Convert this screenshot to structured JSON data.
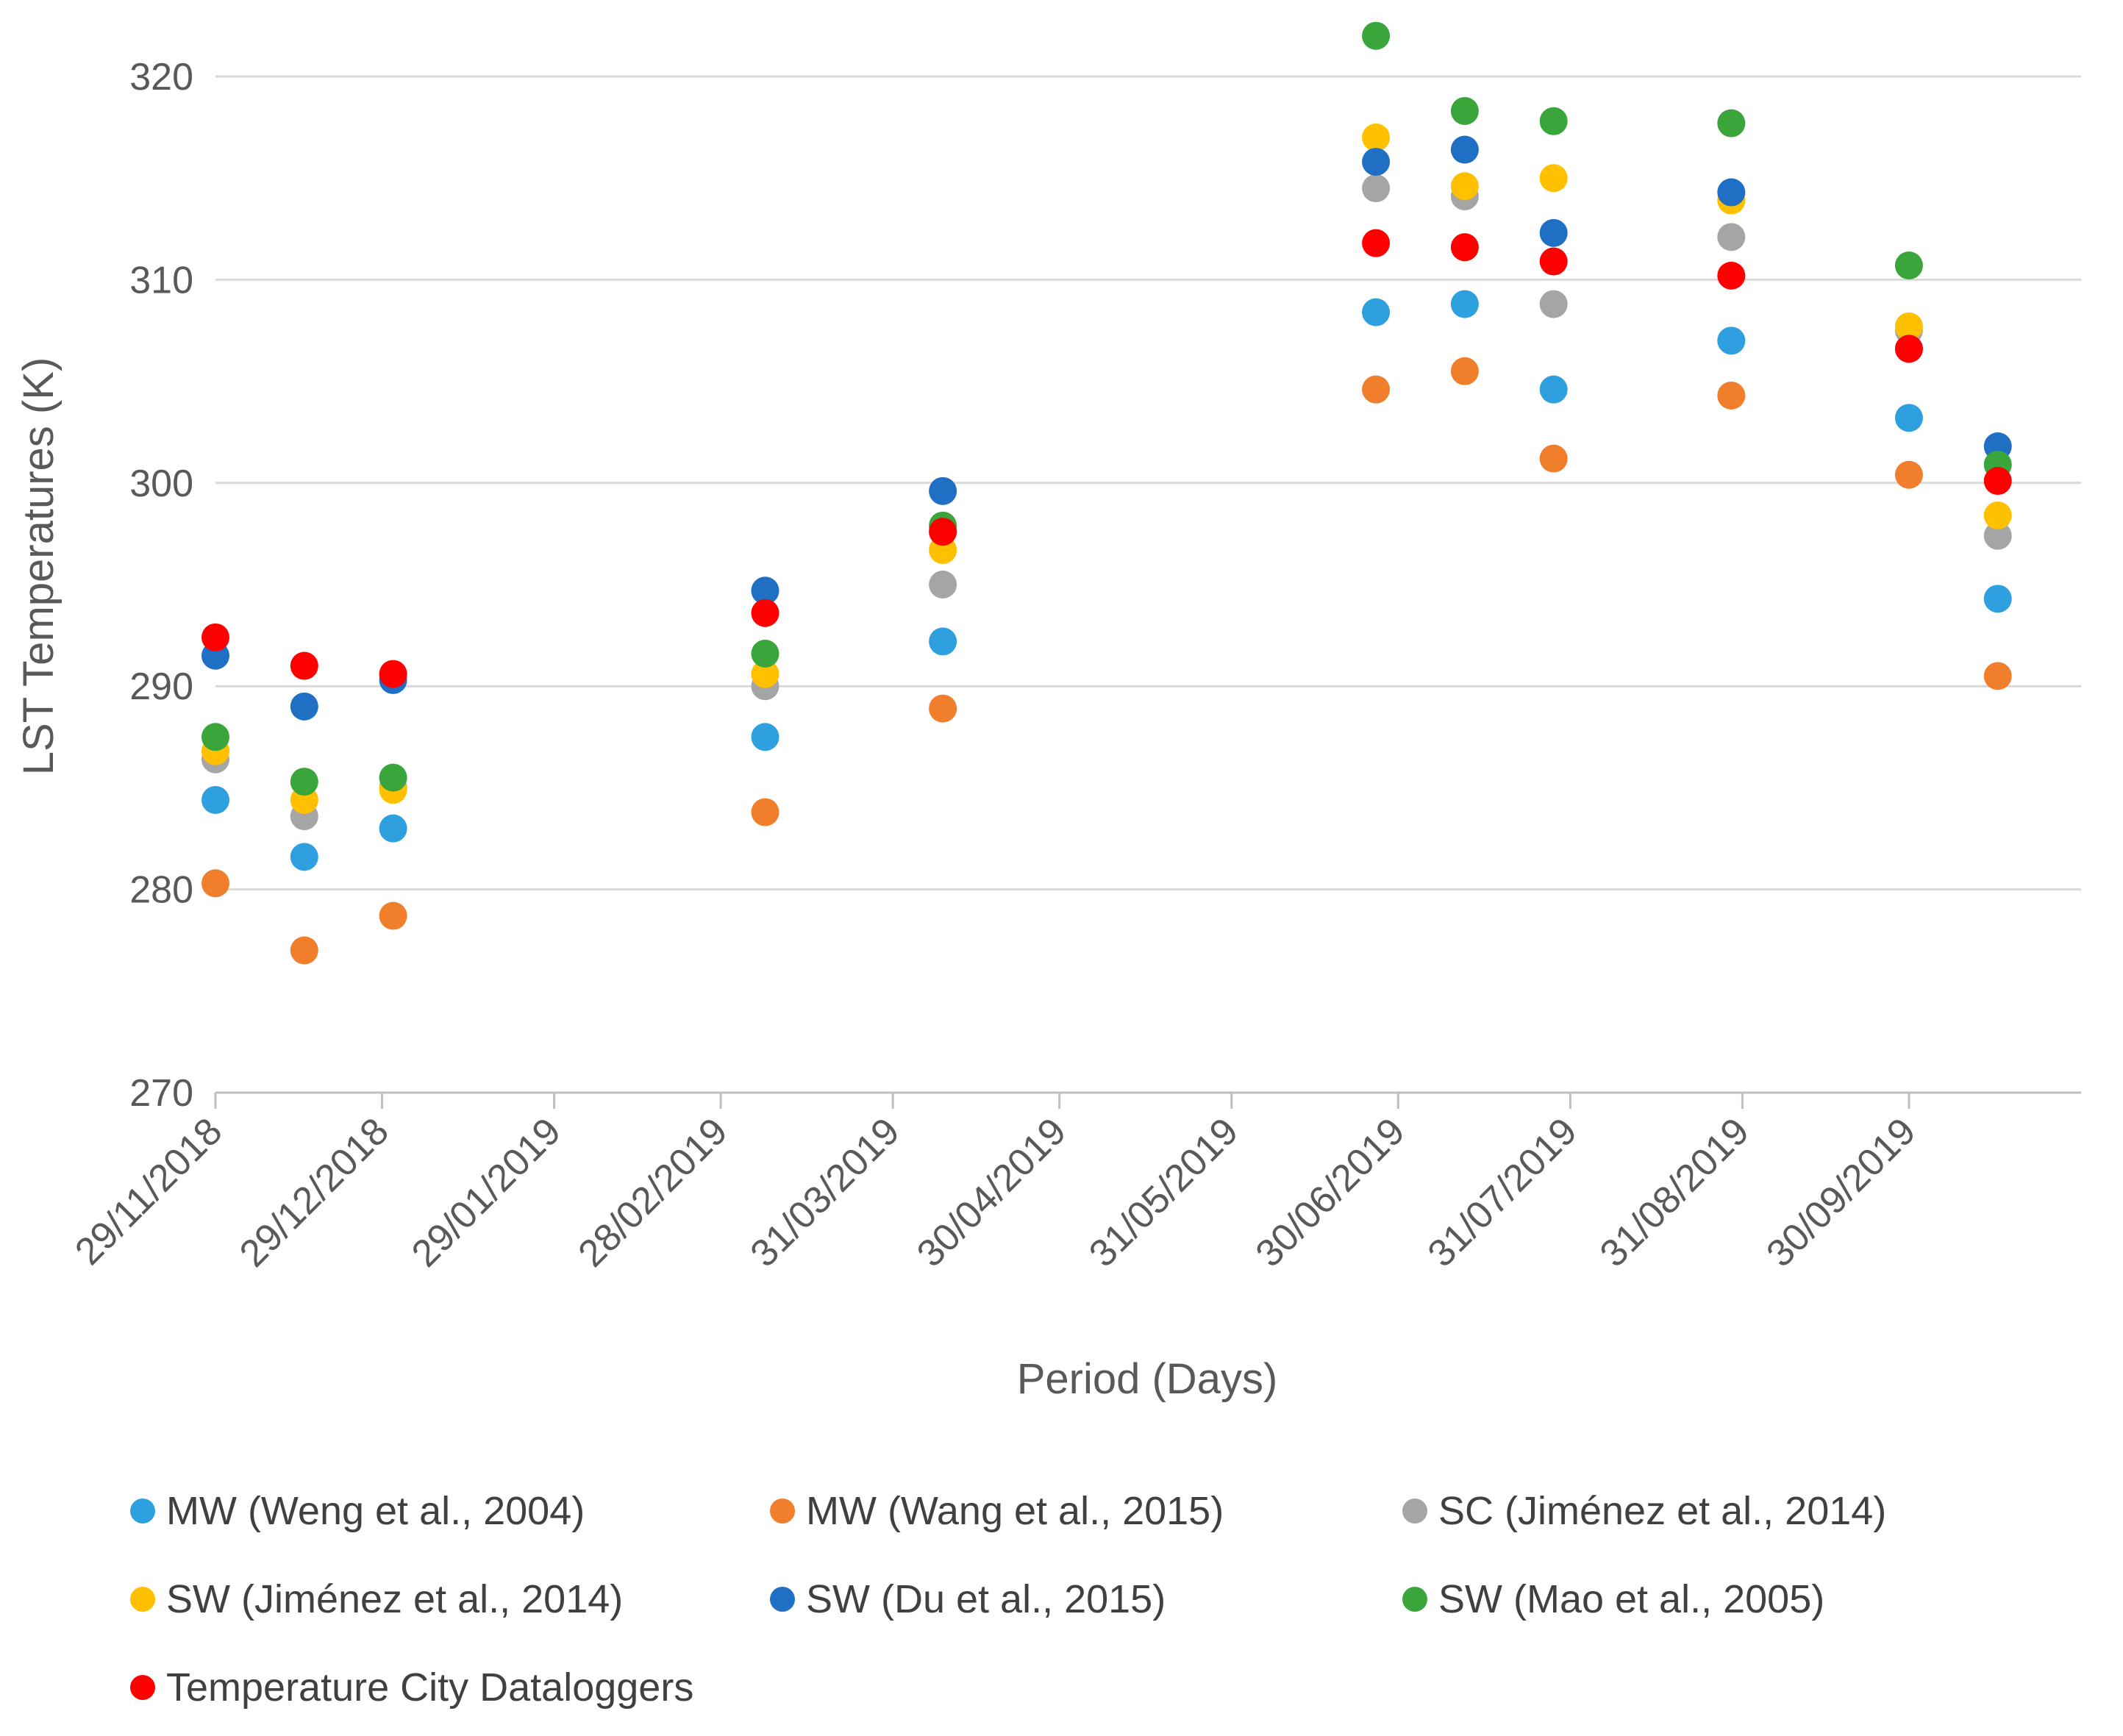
{
  "chart_data": {
    "type": "scatter",
    "title": "",
    "xlabel": "Period (Days)",
    "ylabel": "LST Temperatures (K)",
    "ylim": [
      270,
      320
    ],
    "yticks": [
      270,
      280,
      290,
      300,
      310,
      320
    ],
    "xlim": [
      "2018-11-29",
      "2019-10-31"
    ],
    "xtick_labels": [
      "29/11/2018",
      "29/12/2018",
      "29/01/2019",
      "28/02/2019",
      "31/03/2019",
      "30/04/2019",
      "31/05/2019",
      "30/06/2019",
      "31/07/2019",
      "31/08/2019",
      "30/09/2019"
    ],
    "xtick_dates": [
      "2018-11-29",
      "2018-12-29",
      "2019-01-29",
      "2019-02-28",
      "2019-03-31",
      "2019-04-30",
      "2019-05-31",
      "2019-06-30",
      "2019-07-31",
      "2019-08-31",
      "2019-09-30"
    ],
    "x": [
      "2018-11-29",
      "2018-12-15",
      "2018-12-31",
      "2019-03-08",
      "2019-04-09",
      "2019-06-26",
      "2019-07-12",
      "2019-07-28",
      "2019-08-29",
      "2019-09-30",
      "2019-10-16"
    ],
    "legend_position": "bottom",
    "series": [
      {
        "name": "MW (Weng et al., 2004)",
        "color": "#2E9FDF",
        "values": [
          284.4,
          281.6,
          283.0,
          287.5,
          292.2,
          308.4,
          308.8,
          304.6,
          307.0,
          303.2,
          294.3
        ]
      },
      {
        "name": "MW (Wang et al., 2015)",
        "color": "#F07E2A",
        "values": [
          280.3,
          277.0,
          278.7,
          283.8,
          288.9,
          304.6,
          305.5,
          301.2,
          304.3,
          300.4,
          290.5
        ]
      },
      {
        "name": "SC (Jiménez et al., 2014)",
        "color": "#A5A5A5",
        "values": [
          286.4,
          283.6,
          285.0,
          290.0,
          295.0,
          314.5,
          314.1,
          308.8,
          312.1,
          307.5,
          297.4
        ]
      },
      {
        "name": "SW (Jiménez et al., 2014)",
        "color": "#FFC000",
        "values": [
          286.8,
          284.4,
          284.9,
          290.6,
          296.7,
          317.0,
          314.6,
          315.0,
          313.9,
          307.7,
          298.4
        ]
      },
      {
        "name": "SW (Du et al., 2015)",
        "color": "#1F6FC5",
        "values": [
          291.5,
          289.0,
          290.3,
          294.7,
          299.6,
          315.8,
          316.4,
          312.3,
          314.3,
          306.6,
          301.8
        ]
      },
      {
        "name": "SW (Mao et al., 2005)",
        "color": "#3AA53A",
        "values": [
          287.5,
          285.3,
          285.5,
          291.6,
          297.9,
          322.0,
          318.3,
          317.8,
          317.7,
          310.7,
          300.9
        ]
      },
      {
        "name": "Temperature City Dataloggers",
        "color": "#FF0000",
        "values": [
          292.4,
          291.0,
          290.6,
          293.6,
          297.6,
          311.8,
          311.6,
          310.9,
          310.2,
          306.6,
          300.1
        ]
      }
    ]
  }
}
